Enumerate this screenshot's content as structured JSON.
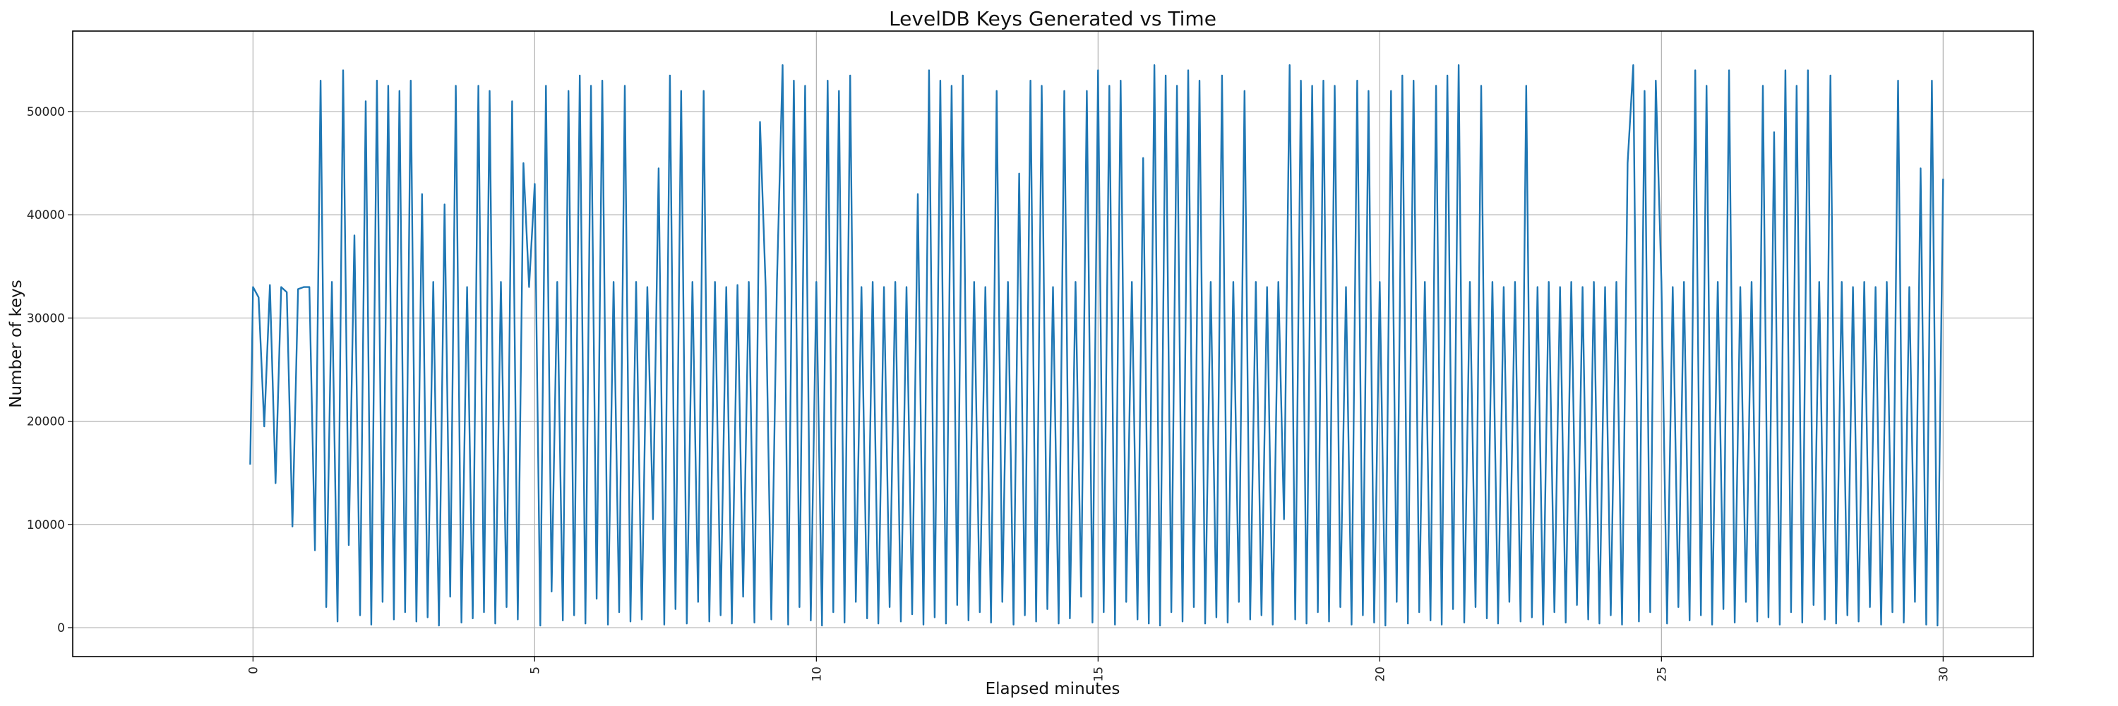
{
  "chart_data": {
    "type": "line",
    "title": "LevelDB Keys Generated vs Time",
    "xlabel": "Elapsed minutes",
    "ylabel": "Number of keys",
    "xlim": [
      -3.2,
      31.6
    ],
    "ylim": [
      -2800,
      57800
    ],
    "xticks": [
      0,
      5,
      10,
      15,
      20,
      25,
      30
    ],
    "yticks": [
      0,
      10000,
      20000,
      30000,
      40000,
      50000
    ],
    "grid": true,
    "line_color": "#1f77b4",
    "series": [
      {
        "name": "keys",
        "x_start": 0,
        "x_step": 0.1,
        "first_point": {
          "x": -0.05,
          "y": 15800
        },
        "values": [
          33000,
          32000,
          19500,
          33200,
          14000,
          33000,
          32500,
          9800,
          32800,
          33000,
          33000,
          7500,
          53000,
          2000,
          33500,
          600,
          54000,
          8000,
          38000,
          1200,
          51000,
          300,
          53000,
          2500,
          52500,
          800,
          52000,
          1500,
          53000,
          600,
          42000,
          1000,
          33500,
          200,
          41000,
          3000,
          52500,
          500,
          33000,
          900,
          52500,
          1500,
          52000,
          400,
          33500,
          2000,
          51000,
          800,
          45000,
          33000,
          43000,
          200,
          52500,
          3500,
          33500,
          700,
          52000,
          1200,
          53500,
          400,
          52500,
          2800,
          53000,
          300,
          33500,
          1500,
          52500,
          600,
          33500,
          800,
          33000,
          10500,
          44500,
          300,
          53500,
          1800,
          52000,
          400,
          33500,
          2500,
          52000,
          600,
          33500,
          1200,
          33000,
          400,
          33200,
          3000,
          33500,
          500,
          49000,
          33000,
          800,
          33500,
          54500,
          300,
          53000,
          2000,
          52500,
          700,
          33500,
          200,
          53000,
          1500,
          52000,
          500,
          53500,
          2500,
          33000,
          900,
          33500,
          400,
          33000,
          2000,
          33500,
          600,
          33000,
          1300,
          42000,
          300,
          54000,
          1000,
          53000,
          400,
          52500,
          2200,
          53500,
          700,
          33500,
          1500,
          33000,
          500,
          52000,
          2500,
          33500,
          300,
          44000,
          1200,
          53000,
          600,
          52500,
          1800,
          33000,
          400,
          52000,
          900,
          33500,
          3000,
          52000,
          500,
          54000,
          1500,
          52500,
          300,
          53000,
          2500,
          33500,
          800,
          45500,
          400,
          54500,
          200,
          53500,
          1500,
          52500,
          600,
          54000,
          2000,
          53000,
          400,
          33500,
          1000,
          53500,
          500,
          33500,
          2500,
          52000,
          800,
          33500,
          1200,
          33000,
          300,
          33500,
          10500,
          54500,
          800,
          53000,
          400,
          52500,
          1500,
          53000,
          600,
          52500,
          2000,
          33000,
          300,
          53000,
          1200,
          52000,
          500,
          33500,
          200,
          52000,
          2500,
          53500,
          400,
          53000,
          1500,
          33500,
          700,
          52500,
          300,
          53500,
          1800,
          54500,
          500,
          33500,
          2000,
          52500,
          900,
          33500,
          400,
          33000,
          2500,
          33500,
          600,
          52500,
          1000,
          33000,
          300,
          33500,
          1500,
          33000,
          500,
          33500,
          2200,
          33000,
          800,
          33500,
          400,
          33000,
          1200,
          33500,
          300,
          45000,
          54500,
          600,
          52000,
          1500,
          53000,
          33500,
          400,
          33000,
          2000,
          33500,
          700,
          54000,
          1200,
          52500,
          300,
          33500,
          1800,
          54000,
          500,
          33000,
          2500,
          33500,
          600,
          52500,
          1000,
          48000,
          300,
          54000,
          1500,
          52500,
          500,
          54000,
          2200,
          33500,
          800,
          53500,
          400,
          33500,
          1200,
          33000,
          600,
          33500,
          2000,
          33000,
          300,
          33500,
          1500,
          53000,
          500,
          33000,
          2500,
          44500,
          300,
          53000,
          200,
          43500
        ]
      }
    ]
  }
}
